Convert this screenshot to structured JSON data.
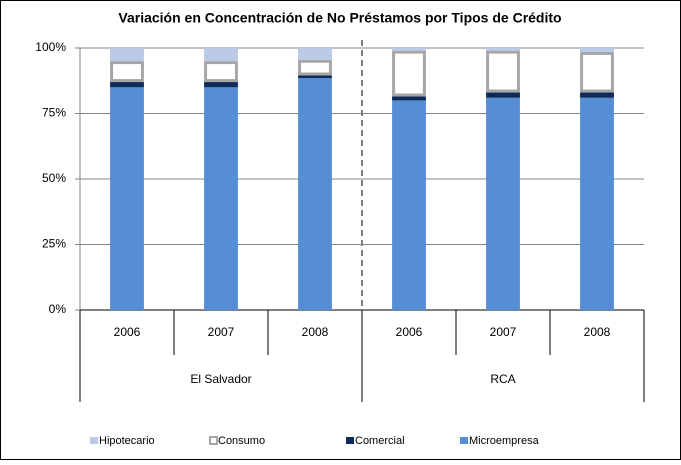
{
  "chart_data": {
    "type": "stacked_bar",
    "title": "Variación en Concentración de No Préstamos por Tipos de Crédito",
    "groups": [
      {
        "name": "El Salvador",
        "categories": [
          "2006",
          "2007",
          "2008"
        ]
      },
      {
        "name": "RCA",
        "categories": [
          "2006",
          "2007",
          "2008"
        ]
      }
    ],
    "series": [
      {
        "name": "Microempresa",
        "color": "#558ed5",
        "values": [
          85,
          85,
          88.5,
          80,
          81,
          81
        ]
      },
      {
        "name": "Comercial",
        "color": "#0f2a5a",
        "values": [
          2,
          2,
          1,
          1.5,
          2,
          2
        ]
      },
      {
        "name": "Consumo",
        "color": "#a6a6a6",
        "outline": true,
        "values": [
          8,
          8,
          6,
          17.5,
          16,
          15.5
        ]
      },
      {
        "name": "Hipotecario",
        "color": "#b9c9e6",
        "values": [
          5,
          5,
          4.5,
          1,
          1,
          1.5
        ]
      }
    ],
    "ylim": [
      0,
      100
    ],
    "yticks": [
      {
        "value": 0,
        "label": "0%"
      },
      {
        "value": 25,
        "label": "25%"
      },
      {
        "value": 50,
        "label": "50%"
      },
      {
        "value": 75,
        "label": "75%"
      },
      {
        "value": 100,
        "label": "100%"
      }
    ],
    "grid": true,
    "legend": "bottom"
  }
}
